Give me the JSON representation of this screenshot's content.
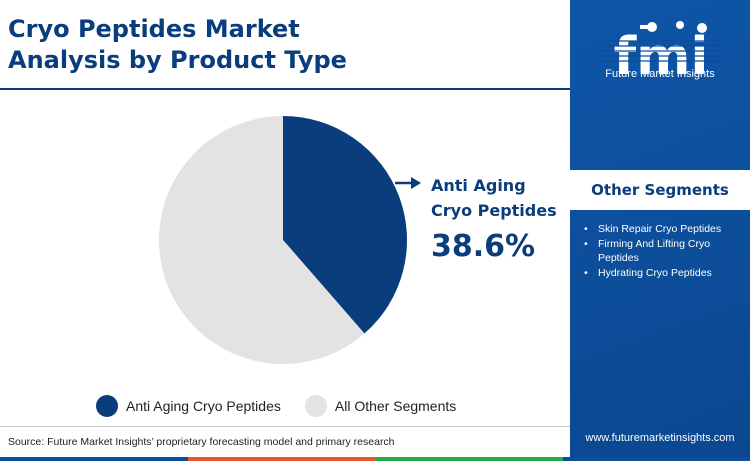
{
  "title_lines": [
    "Cryo Peptides Market",
    "Analysis by Product Type"
  ],
  "chart_data": {
    "type": "pie",
    "title": "Cryo Peptides Market Analysis by Product Type",
    "slices": [
      {
        "label": "Anti Aging Cryo Peptides",
        "value": 38.6,
        "color": "#0a3d7c"
      },
      {
        "label": "All Other Segments",
        "value": 61.4,
        "color": "#e3e3e3"
      }
    ],
    "callout": {
      "label_lines": [
        "Anti Aging",
        "Cryo Peptides"
      ],
      "value": "38.6%"
    }
  },
  "legend": [
    {
      "label": "Anti Aging Cryo Peptides",
      "color": "#0a3d7c"
    },
    {
      "label": "All Other Segments",
      "color": "#e3e3e3"
    }
  ],
  "source": "Source: Future Market Insights’ proprietary forecasting model and primary research",
  "sidebar": {
    "logo_text": "fmi",
    "logo_subtitle": "Future Market Insights",
    "segments_heading": "Other Segments",
    "segments": [
      "Skin Repair Cryo Peptides",
      "Firming And Lifting Cryo Peptides",
      "Hydrating Cryo Peptides"
    ],
    "url": "www.futuremarketinsights.com"
  },
  "colors": {
    "brand_blue": "#0a3d7c",
    "sidebar_blue": "#0d4d9c",
    "bottom_bar": [
      "#0d4d9c",
      "#e8572a",
      "#2aa84a",
      "#0d4d9c"
    ]
  }
}
